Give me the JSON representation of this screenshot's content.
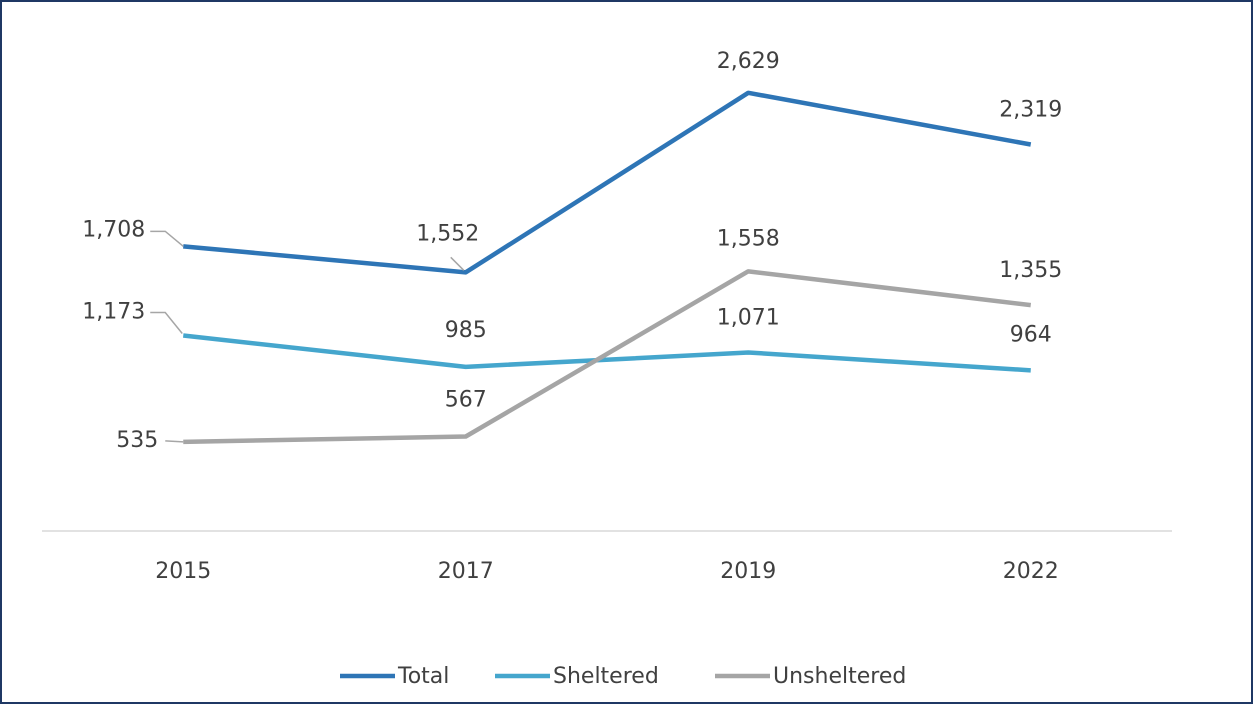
{
  "chart_data": {
    "type": "line",
    "categories": [
      "2015",
      "2017",
      "2019",
      "2022"
    ],
    "series": [
      {
        "name": "Total",
        "color": "#2e75b6",
        "values": [
          1708,
          1552,
          2629,
          2319
        ],
        "value_labels": [
          "1,708",
          "1,552",
          "2,629",
          "2,319"
        ]
      },
      {
        "name": "Sheltered",
        "color": "#45a6cd",
        "values": [
          1173,
          985,
          1071,
          964
        ],
        "value_labels": [
          "1,173",
          "985",
          "1,071",
          "964"
        ]
      },
      {
        "name": "Unsheltered",
        "color": "#a5a5a5",
        "values": [
          535,
          567,
          1558,
          1355
        ],
        "value_labels": [
          "535",
          "567",
          "1,558",
          "1,355"
        ]
      }
    ],
    "ylim": [
      0,
      3000
    ],
    "legend": "bottom"
  }
}
